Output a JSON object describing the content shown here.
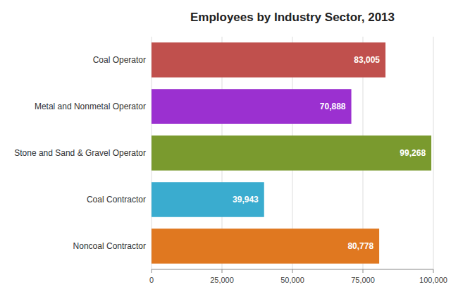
{
  "chart_data": {
    "type": "bar",
    "orientation": "horizontal",
    "title": "Employees by Industry Sector, 2013",
    "categories": [
      "Noncoal Contractor",
      "Coal Contractor",
      "Stone and Sand & Gravel Operator",
      "Metal and Nonmetal Operator",
      "Coal Operator"
    ],
    "values": [
      80778,
      39943,
      99268,
      70888,
      83005
    ],
    "value_labels": [
      "80,778",
      "39,943",
      "99,268",
      "70,888",
      "83,005"
    ],
    "colors": [
      "#e07820",
      "#3aaccf",
      "#7a9a2e",
      "#9b30d0",
      "#c0504d"
    ],
    "xlim": [
      0,
      100000
    ],
    "xticks": [
      0,
      {
        "value": 25000,
        "label": "25,000"
      },
      {
        "value": 50000,
        "label": "50,000"
      },
      {
        "value": 75000,
        "label": "75,000"
      },
      {
        "value": 100000,
        "label": "100,000"
      }
    ],
    "grid": true,
    "data_labels": true
  }
}
